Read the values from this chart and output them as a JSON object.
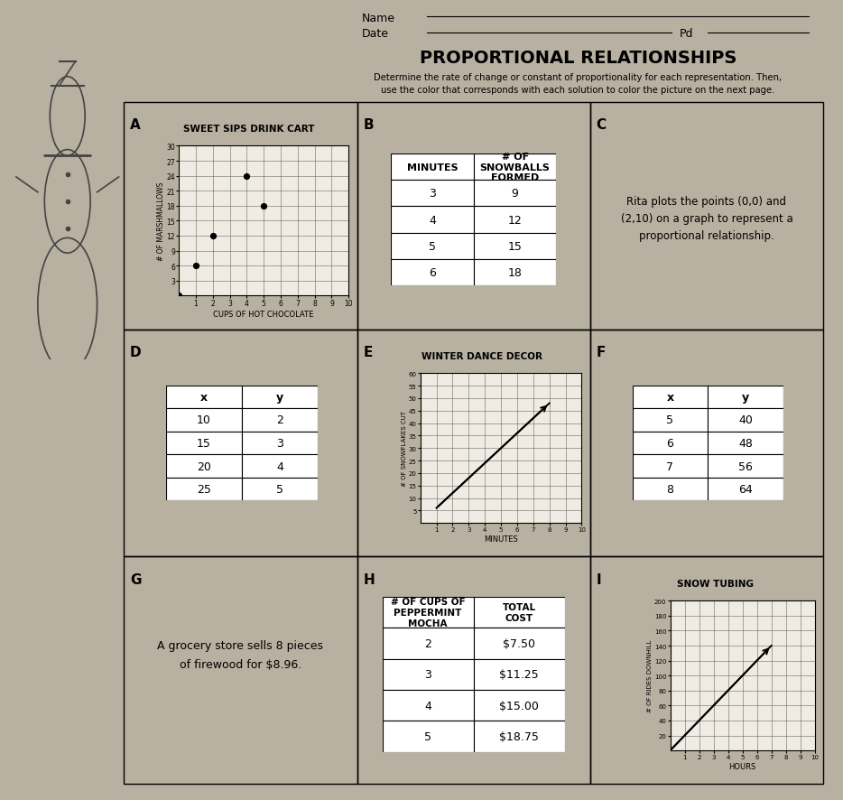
{
  "title": "PROPORTIONAL RELATIONSHIPS",
  "subtitle1": "Determine the rate of change or constant of proportionality for each representation. Then,",
  "subtitle2": "use the color that corresponds with each solution to color the picture on the next page.",
  "name_label": "Name",
  "date_label": "Date",
  "pd_label": "Pd",
  "bg_color": "#b8b0a0",
  "paper_color": "#f0ece4",
  "sections": {
    "A": {
      "label": "A",
      "title": "SWEET SIPS DRINK CART",
      "xlabel": "CUPS OF HOT CHOCOLATE",
      "ylabel": "# OF MARSHMALLOWS",
      "xlim": [
        0,
        10
      ],
      "ylim": [
        0,
        30
      ],
      "xticks": [
        1,
        2,
        3,
        4,
        5,
        6,
        7,
        8,
        9,
        10
      ],
      "yticks": [
        3,
        6,
        9,
        12,
        15,
        18,
        21,
        24,
        27,
        30
      ],
      "scatter_x": [
        0,
        1,
        2,
        4,
        5
      ],
      "scatter_y": [
        0,
        6,
        12,
        24,
        18
      ]
    },
    "B": {
      "label": "B",
      "col1": "MINUTES",
      "col2": "# OF\nSNOWBALLS\nFORMED",
      "rows": [
        [
          "3",
          "9"
        ],
        [
          "4",
          "12"
        ],
        [
          "5",
          "15"
        ],
        [
          "6",
          "18"
        ]
      ]
    },
    "C": {
      "label": "C",
      "text": "Rita plots the points (0,0) and\n(2,10) on a graph to represent a\nproportional relationship."
    },
    "D": {
      "label": "D",
      "col1": "x",
      "col2": "y",
      "rows": [
        [
          "10",
          "2"
        ],
        [
          "15",
          "3"
        ],
        [
          "20",
          "4"
        ],
        [
          "25",
          "5"
        ]
      ]
    },
    "E": {
      "label": "E",
      "title": "WINTER DANCE DECOR",
      "xlabel": "MINUTES",
      "ylabel": "# OF SNOWFLAKES CUT",
      "xlim": [
        0,
        10
      ],
      "ylim": [
        0,
        60
      ],
      "xticks": [
        1,
        2,
        3,
        4,
        5,
        6,
        7,
        8,
        9,
        10
      ],
      "yticks": [
        5,
        10,
        15,
        20,
        25,
        30,
        35,
        40,
        45,
        50,
        55,
        60
      ],
      "line_x": [
        1,
        8
      ],
      "line_y": [
        6,
        48
      ]
    },
    "F": {
      "label": "F",
      "col1": "x",
      "col2": "y",
      "rows": [
        [
          "5",
          "40"
        ],
        [
          "6",
          "48"
        ],
        [
          "7",
          "56"
        ],
        [
          "8",
          "64"
        ]
      ]
    },
    "G": {
      "label": "G",
      "text": "A grocery store sells 8 pieces\nof firewood for $8.96."
    },
    "H": {
      "label": "H",
      "col1": "# OF CUPS OF\nPEPPERMINT\nMOCHA",
      "col2": "TOTAL\nCOST",
      "rows": [
        [
          "2",
          "$7.50"
        ],
        [
          "3",
          "$11.25"
        ],
        [
          "4",
          "$15.00"
        ],
        [
          "5",
          "$18.75"
        ]
      ]
    },
    "I": {
      "label": "I",
      "title": "SNOW TUBING",
      "xlabel": "HOURS",
      "ylabel": "# OF RIDES DOWNHILL",
      "xlim": [
        0,
        10
      ],
      "ylim": [
        0,
        200
      ],
      "xticks": [
        1,
        2,
        3,
        4,
        5,
        6,
        7,
        8,
        9,
        10
      ],
      "yticks": [
        20,
        40,
        60,
        80,
        100,
        120,
        140,
        160,
        180,
        200
      ],
      "line_x": [
        0,
        7
      ],
      "line_y": [
        0,
        140
      ]
    }
  }
}
